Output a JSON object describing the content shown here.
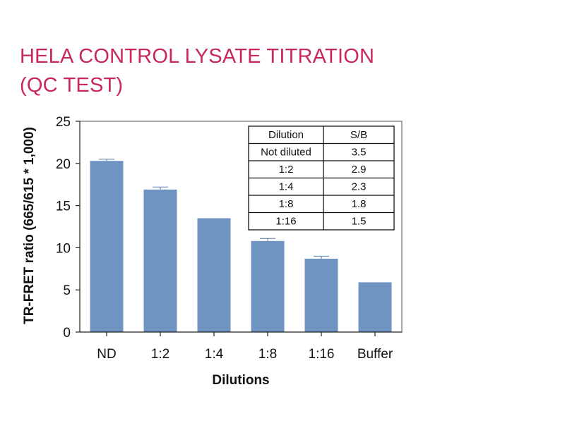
{
  "title_lines": [
    "HELA CONTROL LYSATE TITRATION",
    "(QC TEST)"
  ],
  "chart_data": {
    "type": "bar",
    "categories": [
      "ND",
      "1:2",
      "1:4",
      "1:8",
      "1:16",
      "Buffer"
    ],
    "values": [
      20.3,
      16.9,
      13.5,
      10.8,
      8.7,
      5.9
    ],
    "errors": [
      0.2,
      0.3,
      0,
      0.3,
      0.3,
      0
    ],
    "xlabel": "Dilutions",
    "ylabel": "TR-FRET ratio (665/615 * 1,000)",
    "ylim": [
      0,
      25
    ],
    "yticks": [
      0,
      5,
      10,
      15,
      20,
      25
    ],
    "bar_color": "#6f94c2",
    "grid": false,
    "inset_table": {
      "headers": [
        "Dilution",
        "S/B"
      ],
      "rows": [
        [
          "Not diluted",
          "3.5"
        ],
        [
          "1:2",
          "2.9"
        ],
        [
          "1:4",
          "2.3"
        ],
        [
          "1:8",
          "1.8"
        ],
        [
          "1:16",
          "1.5"
        ]
      ]
    }
  }
}
